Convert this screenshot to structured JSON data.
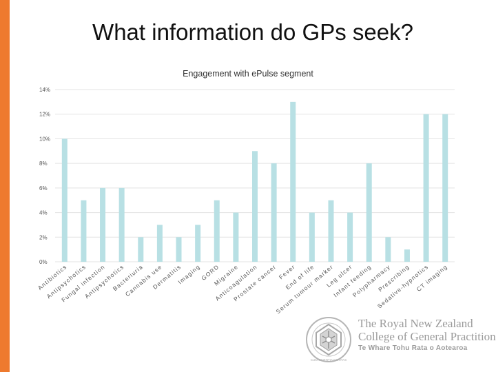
{
  "slide": {
    "title": "What information do GPs seek?",
    "accent_color": "#ee7a2e"
  },
  "logo": {
    "icon": "college-crest-icon",
    "line1": "The Royal New Zealand",
    "line2": "College of General Practitioners",
    "line3": "Te Whare Tohu Rata o Aotearoa",
    "crest_motto": "CUM SCIENTIA CARITAS"
  },
  "chart_data": {
    "type": "bar",
    "title": "Engagement with ePulse segment",
    "xlabel": "",
    "ylabel": "",
    "ylim": [
      0,
      14
    ],
    "yticks": [
      "0%",
      "2%",
      "4%",
      "6%",
      "8%",
      "10%",
      "12%",
      "14%"
    ],
    "grid": true,
    "legend": "none",
    "bar_color": "#b8e0e4",
    "categories": [
      "Antibiotics",
      "Antipsychotics",
      "Fungal infection",
      "Antipsychotics",
      "Bacteriuria",
      "Cannabis use",
      "Dermatitis",
      "Imaging",
      "GORD",
      "Migraine",
      "Anticoagulation",
      "Prostate cancer",
      "Fever",
      "End of life",
      "Serum tumour marker",
      "Leg ulcer",
      "Infant feeding",
      "Polypharmacy",
      "Prescribing",
      "Sedative-hypnotics",
      "CT imaging"
    ],
    "values": [
      10,
      5,
      6,
      6,
      2,
      3,
      2,
      3,
      5,
      4,
      9,
      8,
      13,
      4,
      5,
      4,
      8,
      2,
      1,
      12,
      12
    ]
  }
}
